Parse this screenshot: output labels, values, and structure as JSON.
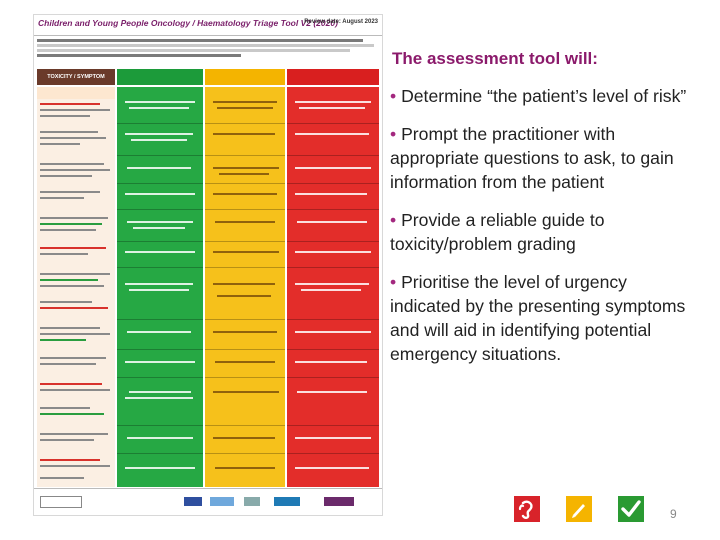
{
  "tool": {
    "title": "Children and Young People Oncology / Haematology Triage Tool V2 (2020)",
    "review_date": "Review date: August 2023",
    "header_label": "TOXICITY / SYMPTOM"
  },
  "panel": {
    "heading": "The assessment tool will:",
    "bullets": [
      "Determine “the patient’s level of risk”",
      "Prompt the practitioner with appropriate questions to ask, to gain information from the patient",
      "Provide a reliable guide to toxicity/problem grading",
      "Prioritise the level of urgency indicated by the presenting symptoms and will aid in identifying potential emergency situations."
    ],
    "bullet_marker": "•"
  },
  "slide_number": "9",
  "icons": [
    "ear-symbol-icon",
    "pencil-icon",
    "checkmark-icon"
  ],
  "colors": {
    "heading": "#8b1a6b",
    "green": "#26a844",
    "amber": "#f6c11b",
    "red": "#e32d2a"
  }
}
